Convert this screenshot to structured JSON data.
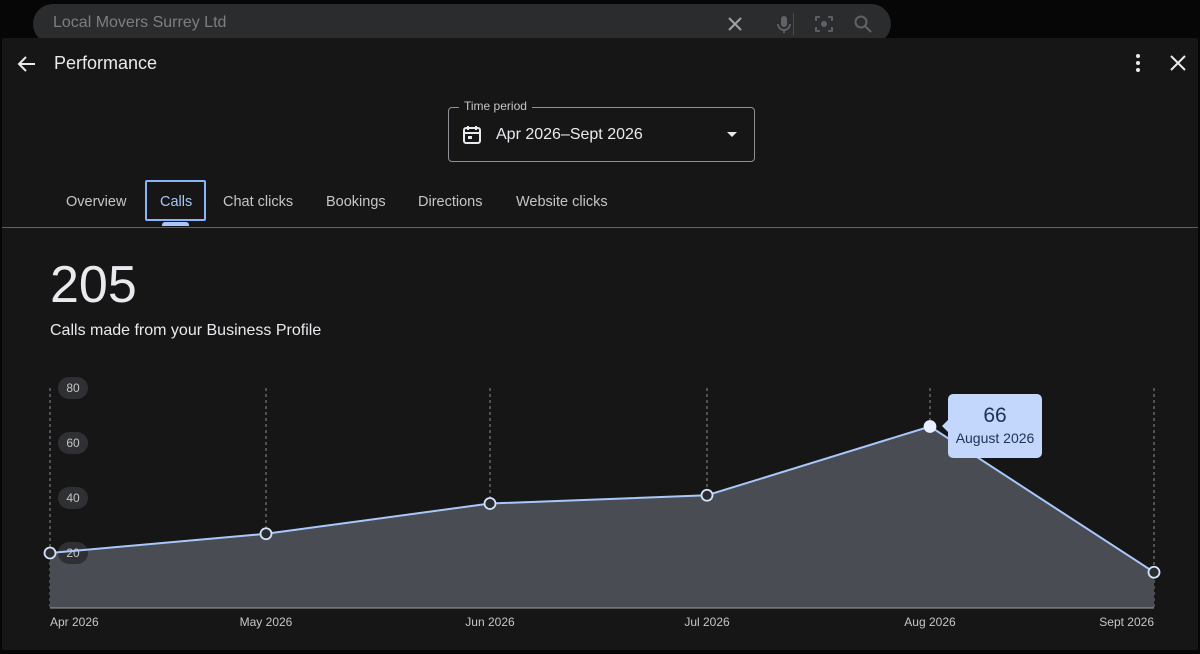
{
  "search": {
    "query": "Local Movers Surrey Ltd"
  },
  "header": {
    "title": "Performance"
  },
  "time_period": {
    "label": "Time period",
    "value": "Apr 2026–Sept 2026"
  },
  "tabs": [
    {
      "label": "Overview",
      "active": false
    },
    {
      "label": "Calls",
      "active": true
    },
    {
      "label": "Chat clicks",
      "active": false
    },
    {
      "label": "Bookings",
      "active": false
    },
    {
      "label": "Directions",
      "active": false
    },
    {
      "label": "Website clicks",
      "active": false
    }
  ],
  "metric": {
    "total": "205",
    "description": "Calls made from your Business Profile"
  },
  "tooltip": {
    "value": "66",
    "label": "August 2026"
  },
  "colors": {
    "accent": "#a8c7fa",
    "line": "#a8c7fa",
    "area": "#4a4c53",
    "tooltip_bg": "#c2d7fb"
  },
  "chart_data": {
    "type": "area",
    "categories": [
      "Apr 2026",
      "May 2026",
      "Jun 2026",
      "Jul 2026",
      "Aug 2026",
      "Sept 2026"
    ],
    "values": [
      20,
      27,
      38,
      41,
      66,
      13
    ],
    "y_ticks": [
      "20",
      "40",
      "60",
      "80"
    ],
    "ylim": [
      0,
      80
    ],
    "highlighted_index": 4
  }
}
